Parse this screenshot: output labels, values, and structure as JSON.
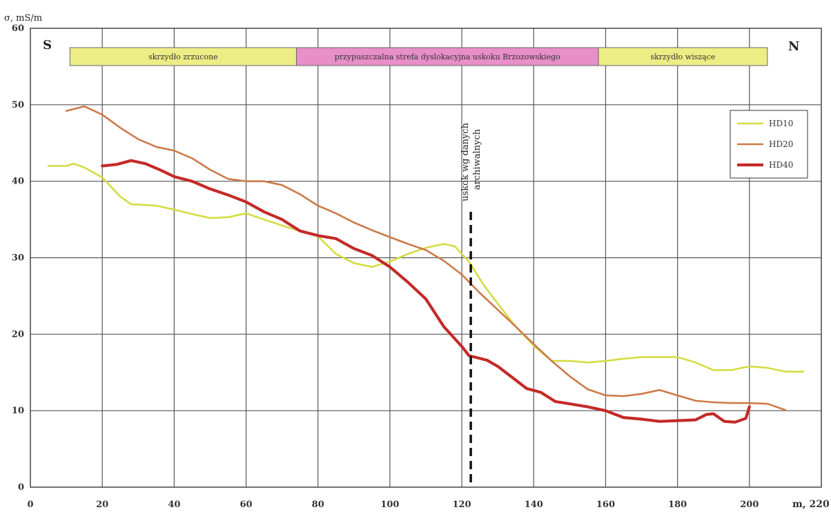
{
  "chart_data": {
    "type": "line",
    "ylabel": "σ, mS/m",
    "xlabel": "m, 220",
    "xlim": [
      0,
      220
    ],
    "ylim": [
      0,
      60
    ],
    "x_ticks": [
      "0",
      "20",
      "40",
      "60",
      "80",
      "100",
      "120",
      "140",
      "160",
      "180",
      "200"
    ],
    "y_ticks": [
      "0",
      "10",
      "20",
      "30",
      "40",
      "50",
      "60"
    ],
    "grid": true,
    "legend_position": "top-right",
    "zones": [
      {
        "label": "skrzydło zrzucone",
        "x_start": 11,
        "x_end": 74,
        "color": "#eded86"
      },
      {
        "label": "przypuszczalna strefa dyslokacyjna uskoku Brzozowskiego",
        "x_start": 74,
        "x_end": 158,
        "color": "#e88ec8"
      },
      {
        "label": "skrzydło wiszące",
        "x_start": 158,
        "x_end": 205,
        "color": "#eded86"
      }
    ],
    "corner_labels": {
      "left": "S",
      "right": "N"
    },
    "fault": {
      "x": 122.5,
      "y_top": 36,
      "label_line1": "uskok wg danych",
      "label_line2": "archiwalnych"
    },
    "series": [
      {
        "name": "HD10",
        "color": "#d6dc42",
        "x": [
          5,
          10,
          12,
          15,
          20,
          25,
          28,
          35,
          40,
          45,
          50,
          55,
          60,
          65,
          70,
          75,
          80,
          85,
          90,
          95,
          100,
          105,
          110,
          115,
          118,
          122,
          126,
          130,
          135,
          140,
          145,
          150,
          155,
          160,
          165,
          170,
          175,
          180,
          185,
          190,
          195,
          200,
          205,
          210,
          215
        ],
        "y": [
          42,
          42,
          42.3,
          41.8,
          40.5,
          38,
          37,
          36.8,
          36.3,
          35.7,
          35.2,
          35.3,
          35.8,
          35,
          34.2,
          33.5,
          32.8,
          30.5,
          29.3,
          28.8,
          29.5,
          30.5,
          31.3,
          31.8,
          31.5,
          29.5,
          26.5,
          24,
          21,
          18.5,
          16.5,
          16.5,
          16.3,
          16.5,
          16.8,
          17,
          17,
          17,
          16.3,
          15.3,
          15.3,
          15.8,
          15.6,
          15.1,
          15.1
        ]
      },
      {
        "name": "HD20",
        "color": "#cc7a4a",
        "x": [
          10,
          15,
          20,
          25,
          30,
          35,
          40,
          45,
          50,
          55,
          60,
          65,
          70,
          75,
          80,
          85,
          90,
          95,
          100,
          105,
          110,
          115,
          120,
          125,
          130,
          135,
          140,
          145,
          150,
          155,
          160,
          165,
          170,
          175,
          180,
          185,
          190,
          195,
          200,
          205,
          210
        ],
        "y": [
          49.2,
          49.8,
          48.7,
          47,
          45.5,
          44.5,
          44,
          43,
          41.5,
          40.3,
          40,
          40,
          39.5,
          38.3,
          36.8,
          35.8,
          34.6,
          33.6,
          32.7,
          31.8,
          31,
          29.6,
          27.8,
          25.4,
          23.2,
          21,
          18.7,
          16.5,
          14.5,
          12.8,
          12,
          11.9,
          12.2,
          12.7,
          12,
          11.3,
          11.1,
          11,
          11,
          10.9,
          10.1
        ]
      },
      {
        "name": "HD40",
        "color": "#c42a28",
        "x": [
          20,
          24,
          28,
          32,
          36,
          40,
          45,
          50,
          55,
          60,
          65,
          70,
          75,
          80,
          85,
          90,
          95,
          100,
          105,
          110,
          115,
          120,
          122,
          127,
          130,
          135,
          138,
          142,
          146,
          150,
          155,
          160,
          165,
          170,
          175,
          180,
          185,
          188,
          190,
          193,
          196,
          199,
          200
        ],
        "y": [
          42,
          42.2,
          42.7,
          42.3,
          41.5,
          40.6,
          40,
          39,
          38.2,
          37.3,
          36,
          35,
          33.5,
          32.9,
          32.5,
          31.2,
          30.3,
          28.8,
          26.8,
          24.6,
          21,
          18.4,
          17.2,
          16.6,
          15.8,
          14,
          12.9,
          12.4,
          11.2,
          10.9,
          10.5,
          10,
          9.1,
          8.9,
          8.6,
          8.7,
          8.8,
          9.5,
          9.6,
          8.6,
          8.5,
          9,
          10.5
        ]
      }
    ]
  }
}
